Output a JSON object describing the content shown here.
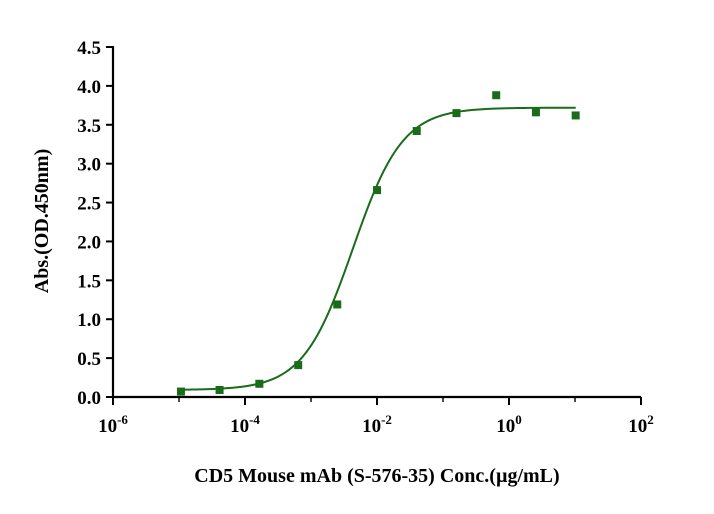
{
  "chart_data": {
    "type": "scatter",
    "title": "",
    "xlabel": "CD5 Mouse mAb (S-576-35) Conc.(µg/mL)",
    "ylabel": "Abs.(OD.450nm)",
    "xscale": "log",
    "xlim": [
      1e-06,
      100
    ],
    "ylim": [
      0,
      4.5
    ],
    "x_ticks": [
      {
        "base": "10",
        "exp": "-6"
      },
      {
        "base": "10",
        "exp": "-4"
      },
      {
        "base": "10",
        "exp": "-2"
      },
      {
        "base": "10",
        "exp": "0"
      },
      {
        "base": "10",
        "exp": "2"
      }
    ],
    "y_ticks": [
      "0.0",
      "0.5",
      "1.0",
      "1.5",
      "2.0",
      "2.5",
      "3.0",
      "3.5",
      "4.0",
      "4.5"
    ],
    "grid": false,
    "legend": "none",
    "color": "#1a6b1a",
    "series": [
      {
        "x": [
          1.07e-05,
          4.12e-05,
          0.000165,
          0.00064,
          0.0025,
          0.01,
          0.04,
          0.16,
          0.64,
          2.56,
          10.24
        ],
        "y": [
          0.07,
          0.09,
          0.17,
          0.41,
          1.19,
          2.66,
          3.42,
          3.65,
          3.88,
          3.66,
          3.62
        ]
      }
    ],
    "fit": {
      "model": "4PL",
      "bottom": 0.09,
      "top": 3.72,
      "ec50": 0.0043,
      "hill": 1.15
    }
  }
}
